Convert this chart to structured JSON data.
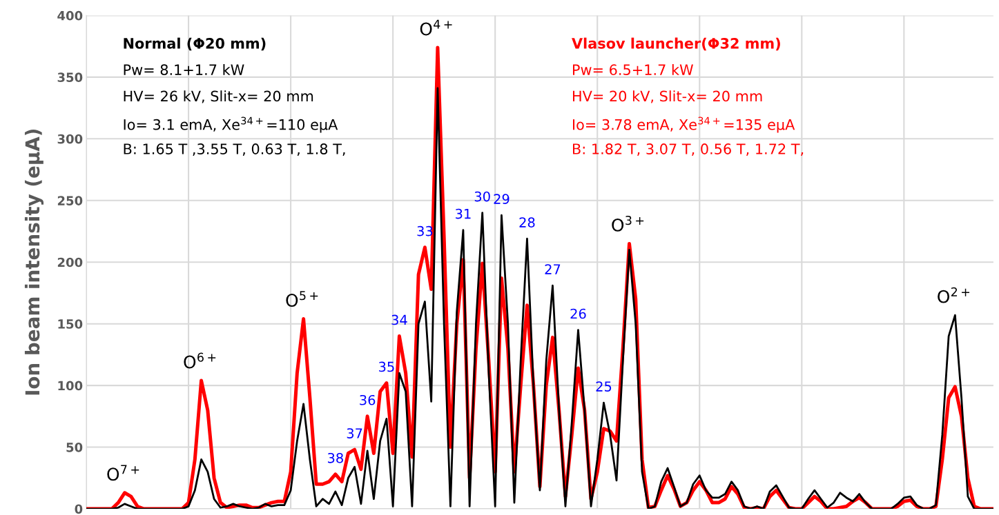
{
  "chart_data": {
    "type": "line",
    "ylabel": "Ion beam intensity (eμA)",
    "categories": [
      null,
      null,
      null,
      null,
      null,
      null,
      null,
      null,
      null,
      null,
      null,
      null,
      null,
      null,
      null,
      null,
      null,
      null,
      null,
      null,
      null,
      null,
      null,
      null,
      null,
      null,
      null,
      null,
      null,
      null,
      null,
      null,
      null,
      null,
      null,
      null,
      null,
      null,
      null,
      null,
      null,
      null,
      null,
      null,
      null,
      null,
      null,
      null,
      null,
      null,
      null,
      null,
      null,
      null,
      null,
      null,
      null,
      null,
      null,
      null,
      null,
      null,
      null,
      null,
      null,
      null,
      null,
      null,
      null,
      null,
      null,
      null,
      null,
      null,
      null,
      null,
      null,
      null,
      null,
      null,
      null,
      null,
      null,
      null,
      null,
      null,
      null,
      null,
      null,
      null,
      null,
      null,
      null,
      null,
      null,
      null,
      null,
      null,
      null,
      null,
      null,
      null,
      null,
      null,
      null,
      null,
      null,
      null,
      null,
      null,
      null,
      null,
      null,
      null,
      null,
      null,
      null,
      null,
      null,
      null,
      null,
      null,
      null,
      null,
      null,
      null,
      null,
      null,
      null,
      null,
      null,
      null,
      null,
      null,
      null,
      null,
      null,
      null,
      null,
      null,
      null,
      null,
      null
    ],
    "series": [
      {
        "color": "#ff0000",
        "values": [
          0,
          0,
          0,
          0,
          0,
          5,
          13,
          10,
          2,
          0,
          0,
          0,
          0,
          0,
          0,
          0,
          5,
          40,
          104,
          80,
          25,
          5,
          1,
          2,
          3,
          3,
          1,
          1,
          3,
          5,
          6,
          6,
          30,
          110,
          154,
          90,
          20,
          20,
          22,
          28,
          22,
          45,
          48,
          32,
          75,
          45,
          95,
          102,
          45,
          140,
          110,
          42,
          190,
          212,
          178,
          374,
          220,
          50,
          150,
          202,
          25,
          130,
          199,
          120,
          30,
          187,
          130,
          30,
          100,
          165,
          100,
          18,
          100,
          139,
          80,
          10,
          60,
          114,
          80,
          8,
          30,
          65,
          63,
          55,
          130,
          215,
          170,
          40,
          1,
          2,
          15,
          27,
          16,
          2,
          5,
          15,
          22,
          15,
          5,
          5,
          8,
          18,
          12,
          1,
          0,
          1,
          0,
          10,
          15,
          8,
          1,
          0,
          0,
          5,
          10,
          6,
          0,
          0,
          1,
          2,
          6,
          9,
          5,
          0,
          0,
          0,
          0,
          2,
          6,
          7,
          2,
          0,
          0,
          2,
          40,
          90,
          99,
          75,
          25,
          2,
          0,
          0,
          0
        ]
      },
      {
        "color": "#000000",
        "values": [
          0,
          0,
          0,
          0,
          0,
          1,
          4,
          2,
          0,
          0,
          0,
          0,
          0,
          0,
          0,
          0,
          2,
          15,
          40,
          30,
          8,
          1,
          2,
          4,
          2,
          1,
          0,
          1,
          4,
          2,
          3,
          3,
          15,
          55,
          85,
          40,
          2,
          8,
          4,
          14,
          3,
          25,
          34,
          4,
          47,
          8,
          55,
          73,
          2,
          110,
          95,
          2,
          150,
          168,
          87,
          341,
          150,
          2,
          160,
          226,
          2,
          150,
          240,
          110,
          2,
          238,
          150,
          5,
          120,
          219,
          100,
          15,
          120,
          181,
          80,
          2,
          70,
          145,
          80,
          2,
          40,
          86,
          60,
          23,
          120,
          210,
          150,
          30,
          0,
          2,
          22,
          33,
          18,
          2,
          5,
          20,
          27,
          15,
          9,
          9,
          12,
          22,
          15,
          2,
          0,
          2,
          0,
          14,
          19,
          10,
          1,
          0,
          0,
          8,
          15,
          8,
          1,
          5,
          13,
          9,
          6,
          12,
          5,
          0,
          0,
          0,
          0,
          4,
          9,
          10,
          3,
          0,
          0,
          3,
          60,
          140,
          157,
          90,
          10,
          0,
          0,
          0,
          0
        ]
      }
    ],
    "ylim": [
      0,
      400
    ],
    "yticks": [
      0,
      50,
      100,
      150,
      200,
      250,
      300,
      350,
      400
    ],
    "grid": true,
    "tick_labels": "y",
    "marker": "none",
    "line_style": "solid",
    "annotations": [
      "Normal (Φ20 mm)",
      "Pw= 8.1+1.7 kW",
      "HV= 26 kV, Slit-x= 20 mm",
      "Io= 3.1 emA, Xe$^{34+}$=110 eμA",
      "B: 1.65 T ,3.55 T, 0.63 T, 1.8 T,",
      "Vlasov launcher(Φ32 mm)",
      "Pw= 6.5+1.7 kW",
      "HV= 20 kV, Slit-x= 20 mm",
      "Io= 3.78 emA, Xe$^{34+}$=135 eμA",
      "B: 1.82 T, 3.07 T, 0.56 T, 1.72 T,",
      {
        "text": "O$^{7+}$",
        "y": 13
      },
      {
        "text": "O$^{6+}$",
        "y": 104
      },
      {
        "text": "O$^{5+}$",
        "y": 154
      },
      {
        "text": "O$^{4+}$",
        "y": 374
      },
      {
        "text": "O$^{3+}$",
        "y": 215
      },
      {
        "text": "O$^{2+}$",
        "y": 157
      },
      {
        "text": "38",
        "y": 28
      },
      {
        "text": "37",
        "y": 48
      },
      {
        "text": "36",
        "y": 75
      },
      {
        "text": "35",
        "y": 102
      },
      {
        "text": "34",
        "y": 140
      },
      {
        "text": "33",
        "y": 212
      },
      {
        "text": "31",
        "y": 226
      },
      {
        "text": "30",
        "y": 240
      },
      {
        "text": "29",
        "y": 238
      },
      {
        "text": "28",
        "y": 219
      },
      {
        "text": "27",
        "y": 181
      },
      {
        "text": "26",
        "y": 145
      },
      {
        "text": "25",
        "y": 86
      }
    ]
  }
}
